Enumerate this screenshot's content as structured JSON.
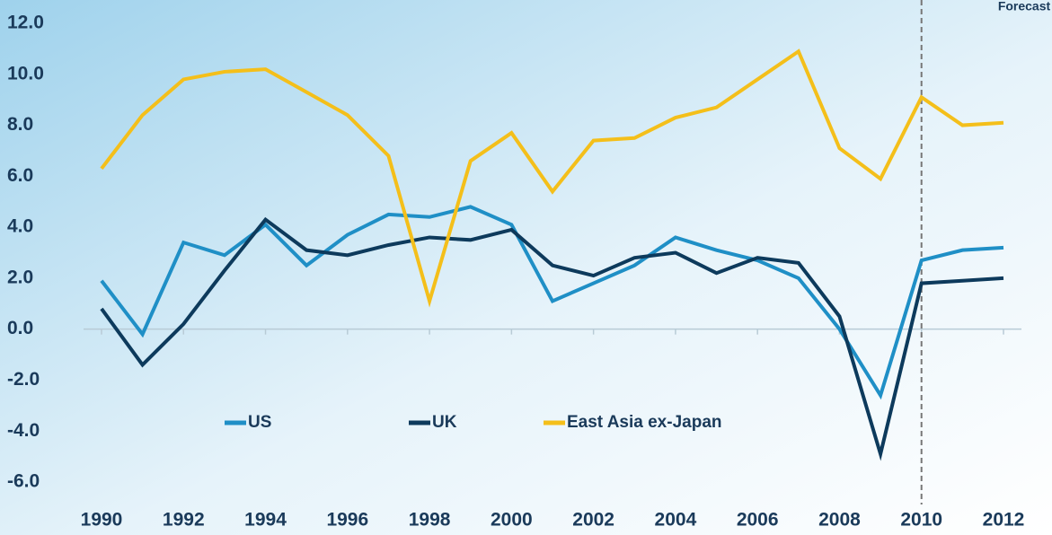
{
  "chart_data": {
    "type": "line",
    "annotation": "Forecast",
    "forecast_start": 2010,
    "x": [
      1990,
      1991,
      1992,
      1993,
      1994,
      1995,
      1996,
      1997,
      1998,
      1999,
      2000,
      2001,
      2002,
      2003,
      2004,
      2005,
      2006,
      2007,
      2008,
      2009,
      2010,
      2011,
      2012
    ],
    "series": [
      {
        "name": "US",
        "color": "#1f8fc6",
        "values": [
          1.9,
          -0.2,
          3.4,
          2.9,
          4.1,
          2.5,
          3.7,
          4.5,
          4.4,
          4.8,
          4.1,
          1.1,
          1.8,
          2.5,
          3.6,
          3.1,
          2.7,
          2.0,
          0.0,
          -2.6,
          2.7,
          3.1,
          3.2
        ]
      },
      {
        "name": "UK",
        "color": "#0d3a5c",
        "values": [
          0.8,
          -1.4,
          0.2,
          2.3,
          4.3,
          3.1,
          2.9,
          3.3,
          3.6,
          3.5,
          3.9,
          2.5,
          2.1,
          2.8,
          3.0,
          2.2,
          2.8,
          2.6,
          0.5,
          -4.9,
          1.8,
          1.9,
          2.0
        ]
      },
      {
        "name": "East Asia ex-Japan",
        "color": "#f4bf1a",
        "values": [
          6.3,
          8.4,
          9.8,
          10.1,
          10.2,
          9.3,
          8.4,
          6.8,
          1.1,
          6.6,
          7.7,
          5.4,
          7.4,
          7.5,
          8.3,
          8.7,
          9.8,
          10.9,
          7.1,
          5.9,
          9.1,
          8.0,
          8.1
        ]
      }
    ],
    "xlim": [
      1990,
      2012
    ],
    "xticks": [
      1990,
      1992,
      1994,
      1996,
      1998,
      2000,
      2002,
      2004,
      2006,
      2008,
      2010,
      2012
    ],
    "ylim": [
      -6,
      12
    ],
    "yticks": [
      {
        "value": -6,
        "label": "-6.0"
      },
      {
        "value": -4,
        "label": "-4.0"
      },
      {
        "value": -2,
        "label": "-2.0"
      },
      {
        "value": 0,
        "label": "0.0"
      },
      {
        "value": 2,
        "label": "2.0"
      },
      {
        "value": 4,
        "label": "4.0"
      },
      {
        "value": 6,
        "label": "6.0"
      },
      {
        "value": 8,
        "label": "8.0"
      },
      {
        "value": 10,
        "label": "10.0"
      },
      {
        "value": 12,
        "label": "12.0"
      }
    ]
  }
}
